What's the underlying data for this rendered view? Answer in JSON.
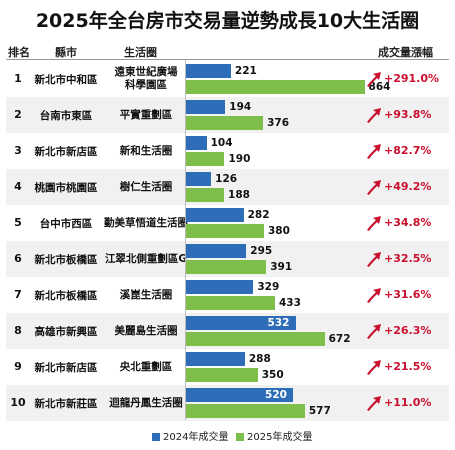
{
  "title": "2025年全台房市交易量逆勢成長10大生活圈",
  "headers": {
    "rank": "排名",
    "district": "縣市",
    "circle": "生活圈",
    "growth": "成交量漲幅"
  },
  "legend": {
    "y2024": "2024年成交量",
    "y2025": "2025年成交量"
  },
  "colors": {
    "y2024": "#2e6db7",
    "y2025": "#7dbf4a",
    "growth": "#c8102e",
    "rowBg": "#f1f1f1"
  },
  "chart_data": {
    "type": "bar",
    "orientation": "horizontal",
    "title": "2025年全台房市交易量逆勢成長10大生活圈",
    "categories": [
      "遠東世紀廣場 科學園區",
      "平實重劃區",
      "新和生活圈",
      "樹仁生活圈",
      "勤美草悟道生活圈",
      "江翠北側重劃區G",
      "溪崑生活圈",
      "美麗島生活圈",
      "央北重劃區",
      "迴龍丹鳳生活圈"
    ],
    "rows": [
      {
        "rank": "1",
        "district": "新北市中和區",
        "circle": [
          "遠東世紀廣場",
          "科學園區"
        ],
        "v2024": 221,
        "v2025": 864,
        "growth": "+291.0%"
      },
      {
        "rank": "2",
        "district": "台南市東區",
        "circle": [
          "平實重劃區"
        ],
        "v2024": 194,
        "v2025": 376,
        "growth": "+93.8%"
      },
      {
        "rank": "3",
        "district": "新北市新店區",
        "circle": [
          "新和生活圈"
        ],
        "v2024": 104,
        "v2025": 190,
        "growth": "+82.7%"
      },
      {
        "rank": "4",
        "district": "桃園市桃園區",
        "circle": [
          "樹仁生活圈"
        ],
        "v2024": 126,
        "v2025": 188,
        "growth": "+49.2%"
      },
      {
        "rank": "5",
        "district": "台中市西區",
        "circle": [
          "勤美草悟道生活圈"
        ],
        "v2024": 282,
        "v2025": 380,
        "growth": "+34.8%"
      },
      {
        "rank": "6",
        "district": "新北市板橋區",
        "circle": [
          "江翠北側重劃區G"
        ],
        "v2024": 295,
        "v2025": 391,
        "growth": "+32.5%"
      },
      {
        "rank": "7",
        "district": "新北市板橋區",
        "circle": [
          "溪崑生活圈"
        ],
        "v2024": 329,
        "v2025": 433,
        "growth": "+31.6%"
      },
      {
        "rank": "8",
        "district": "高雄市新興區",
        "circle": [
          "美麗島生活圈"
        ],
        "v2024": 532,
        "v2025": 672,
        "growth": "+26.3%"
      },
      {
        "rank": "9",
        "district": "新北市新店區",
        "circle": [
          "央北重劃區"
        ],
        "v2024": 288,
        "v2025": 350,
        "growth": "+21.5%"
      },
      {
        "rank": "10",
        "district": "新北市新莊區",
        "circle": [
          "迴龍丹鳳生活圈"
        ],
        "v2024": 520,
        "v2025": 577,
        "growth": "+11.0%"
      }
    ],
    "series": [
      {
        "name": "2024年成交量",
        "values": [
          221,
          194,
          104,
          126,
          282,
          295,
          329,
          532,
          288,
          520
        ]
      },
      {
        "name": "2025年成交量",
        "values": [
          864,
          376,
          190,
          188,
          380,
          391,
          433,
          672,
          350,
          577
        ]
      }
    ],
    "xlim": [
      0,
      900
    ],
    "legend_position": "bottom",
    "grid": false
  }
}
